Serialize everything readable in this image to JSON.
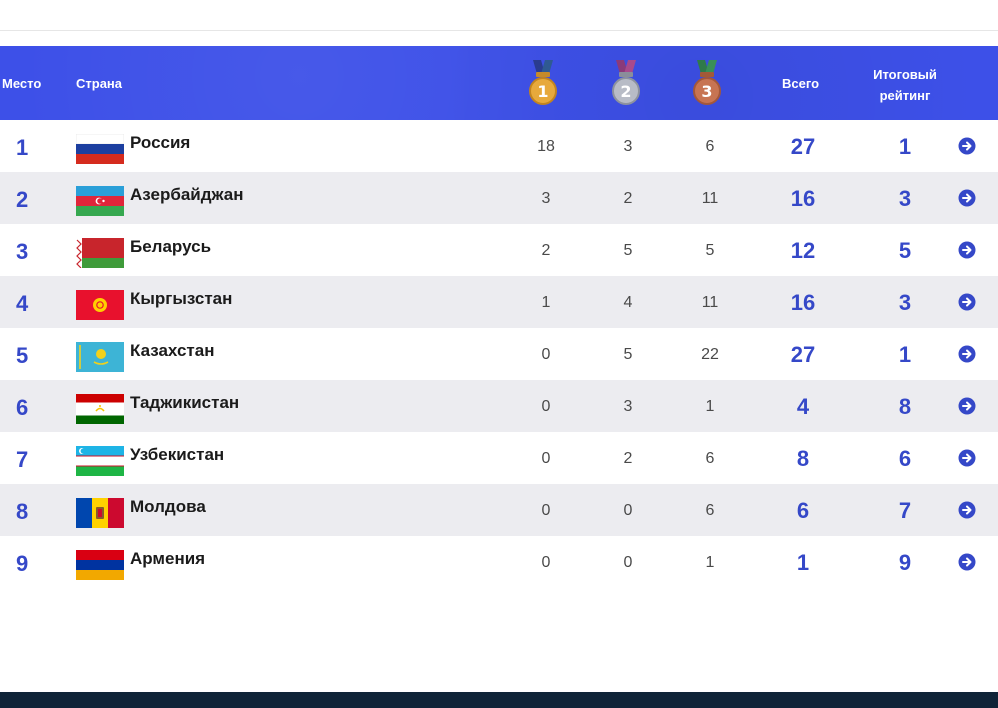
{
  "colors": {
    "header_bg": "#3d50e8",
    "accent": "#3548c8",
    "row_alt": "#ececf0",
    "footer": "#0f2438"
  },
  "header": {
    "place": "Место",
    "country": "Страна",
    "gold_icon": "gold-medal-icon",
    "silver_icon": "silver-medal-icon",
    "bronze_icon": "bronze-medal-icon",
    "gold_num": "1",
    "silver_num": "2",
    "bronze_num": "3",
    "total": "Всего",
    "rating_line1": "Итоговый",
    "rating_line2": "рейтинг"
  },
  "rows": [
    {
      "place": "1",
      "country": "Россия",
      "flag": "russia-flag-icon",
      "gold": "18",
      "silver": "3",
      "bronze": "6",
      "total": "27",
      "rating": "1"
    },
    {
      "place": "2",
      "country": "Азербайджан",
      "flag": "azerbaijan-flag-icon",
      "gold": "3",
      "silver": "2",
      "bronze": "11",
      "total": "16",
      "rating": "3"
    },
    {
      "place": "3",
      "country": "Беларусь",
      "flag": "belarus-flag-icon",
      "gold": "2",
      "silver": "5",
      "bronze": "5",
      "total": "12",
      "rating": "5"
    },
    {
      "place": "4",
      "country": "Кыргызстан",
      "flag": "kyrgyzstan-flag-icon",
      "gold": "1",
      "silver": "4",
      "bronze": "11",
      "total": "16",
      "rating": "3"
    },
    {
      "place": "5",
      "country": "Казахстан",
      "flag": "kazakhstan-flag-icon",
      "gold": "0",
      "silver": "5",
      "bronze": "22",
      "total": "27",
      "rating": "1"
    },
    {
      "place": "6",
      "country": "Таджикистан",
      "flag": "tajikistan-flag-icon",
      "gold": "0",
      "silver": "3",
      "bronze": "1",
      "total": "4",
      "rating": "8"
    },
    {
      "place": "7",
      "country": "Узбекистан",
      "flag": "uzbekistan-flag-icon",
      "gold": "0",
      "silver": "2",
      "bronze": "6",
      "total": "8",
      "rating": "6"
    },
    {
      "place": "8",
      "country": "Молдова",
      "flag": "moldova-flag-icon",
      "gold": "0",
      "silver": "0",
      "bronze": "6",
      "total": "6",
      "rating": "7"
    },
    {
      "place": "9",
      "country": "Армения",
      "flag": "armenia-flag-icon",
      "gold": "0",
      "silver": "0",
      "bronze": "1",
      "total": "1",
      "rating": "9"
    }
  ]
}
